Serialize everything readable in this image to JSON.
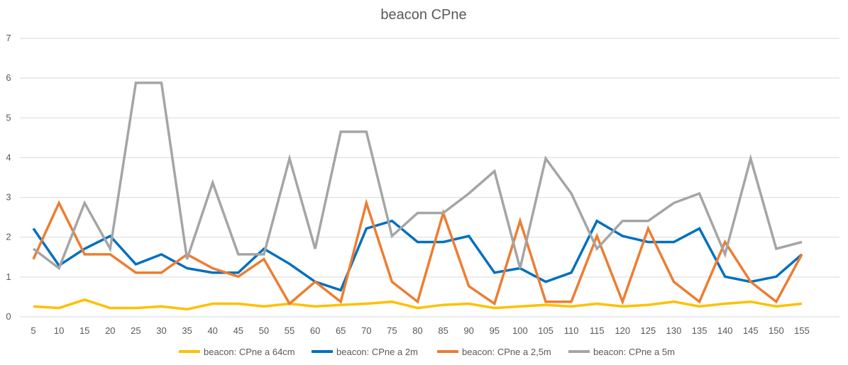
{
  "chart_data": {
    "type": "line",
    "title": "beacon CPne",
    "xlabel": "",
    "ylabel": "",
    "ylim": [
      0,
      7
    ],
    "yticks": [
      0,
      1,
      2,
      3,
      4,
      5,
      6,
      7
    ],
    "grid": true,
    "legend_position": "bottom",
    "categories": [
      "5",
      "10",
      "15",
      "20",
      "25",
      "30",
      "35",
      "40",
      "45",
      "50",
      "55",
      "60",
      "65",
      "70",
      "75",
      "80",
      "85",
      "90",
      "95",
      "100",
      "105",
      "110",
      "115",
      "120",
      "125",
      "130",
      "135",
      "140",
      "145",
      "150",
      "155"
    ],
    "series": [
      {
        "name": "beacon: CPne a 64cm",
        "color": "#FFC000",
        "values": [
          0.26,
          0.22,
          0.43,
          0.22,
          0.22,
          0.26,
          0.19,
          0.33,
          0.33,
          0.26,
          0.33,
          0.26,
          0.3,
          0.33,
          0.38,
          0.22,
          0.3,
          0.33,
          0.22,
          0.26,
          0.3,
          0.26,
          0.33,
          0.26,
          0.3,
          0.38,
          0.26,
          0.33,
          0.38,
          0.26,
          0.33
        ]
      },
      {
        "name": "beacon: CPne a 2m",
        "color": "#0070C0",
        "values": [
          2.22,
          1.29,
          1.71,
          2.03,
          1.32,
          1.57,
          1.22,
          1.11,
          1.11,
          1.71,
          1.33,
          0.88,
          0.67,
          2.22,
          2.41,
          1.88,
          1.88,
          2.03,
          1.11,
          1.22,
          0.88,
          1.11,
          2.41,
          2.03,
          1.88,
          1.88,
          2.22,
          1.01,
          0.88,
          1.01,
          1.57
        ]
      },
      {
        "name": "beacon: CPne a 2,5m",
        "color": "#ED7D31",
        "values": [
          1.45,
          2.86,
          1.57,
          1.57,
          1.11,
          1.11,
          1.57,
          1.22,
          1.01,
          1.45,
          0.33,
          0.88,
          0.38,
          2.86,
          0.88,
          0.38,
          2.61,
          0.77,
          0.33,
          2.41,
          0.38,
          0.38,
          2.03,
          0.38,
          2.22,
          0.88,
          0.38,
          1.88,
          0.88,
          0.38,
          1.57
        ]
      },
      {
        "name": "beacon: CPne a 5m",
        "color": "#A5A5A5",
        "values": [
          1.71,
          1.22,
          2.86,
          1.71,
          5.88,
          5.88,
          1.45,
          3.37,
          1.57,
          1.57,
          3.98,
          1.71,
          4.65,
          4.65,
          2.03,
          2.61,
          2.61,
          3.1,
          3.66,
          1.22,
          3.98,
          3.1,
          1.71,
          2.41,
          2.41,
          2.86,
          3.1,
          1.57,
          3.98,
          1.71,
          1.88
        ]
      }
    ]
  }
}
